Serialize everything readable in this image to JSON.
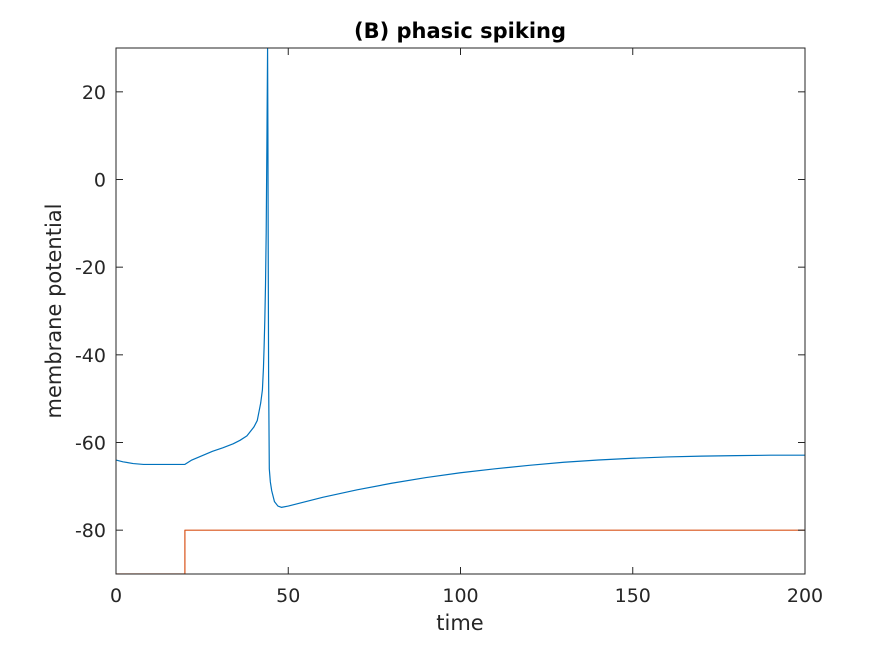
{
  "chart_data": {
    "type": "line",
    "title": "(B) phasic spiking",
    "xlabel": "time",
    "ylabel": "membrane potential",
    "xlim": [
      0,
      200
    ],
    "ylim": [
      -90,
      30
    ],
    "xticks": [
      0,
      50,
      100,
      150,
      200
    ],
    "yticks": [
      -80,
      -60,
      -40,
      -20,
      0,
      20
    ],
    "grid": false,
    "series": [
      {
        "color": "#0072bd",
        "x": [
          0,
          2,
          5,
          8,
          12,
          16,
          20,
          22,
          25,
          28,
          31,
          34,
          36,
          38,
          39,
          40,
          41,
          41.5,
          42,
          42.5,
          42.8,
          43.0,
          43.2,
          43.4,
          43.6,
          43.8,
          44.0,
          44.1,
          44.2,
          44.3,
          44.5,
          44.8,
          45.2,
          46,
          47,
          48,
          50,
          55,
          60,
          70,
          80,
          90,
          100,
          110,
          120,
          130,
          140,
          150,
          160,
          170,
          180,
          190,
          200
        ],
        "y": [
          -64,
          -64.4,
          -64.8,
          -65,
          -65,
          -65,
          -65,
          -64,
          -63,
          -62,
          -61.2,
          -60.3,
          -59.5,
          -58.5,
          -57.5,
          -56.5,
          -55,
          -53,
          -51,
          -48,
          -43,
          -38,
          -32,
          -24,
          -12,
          8,
          30,
          10,
          -20,
          -45,
          -66,
          -69,
          -71,
          -73.5,
          -74.5,
          -74.8,
          -74.5,
          -73.5,
          -72.5,
          -70.8,
          -69.3,
          -68,
          -66.9,
          -66,
          -65.2,
          -64.5,
          -64,
          -63.6,
          -63.3,
          -63.1,
          -63,
          -62.9,
          -62.9
        ]
      },
      {
        "color": "#d95319",
        "x": [
          0,
          20,
          20,
          200
        ],
        "y": [
          -90,
          -90,
          -80,
          -80
        ]
      }
    ]
  }
}
